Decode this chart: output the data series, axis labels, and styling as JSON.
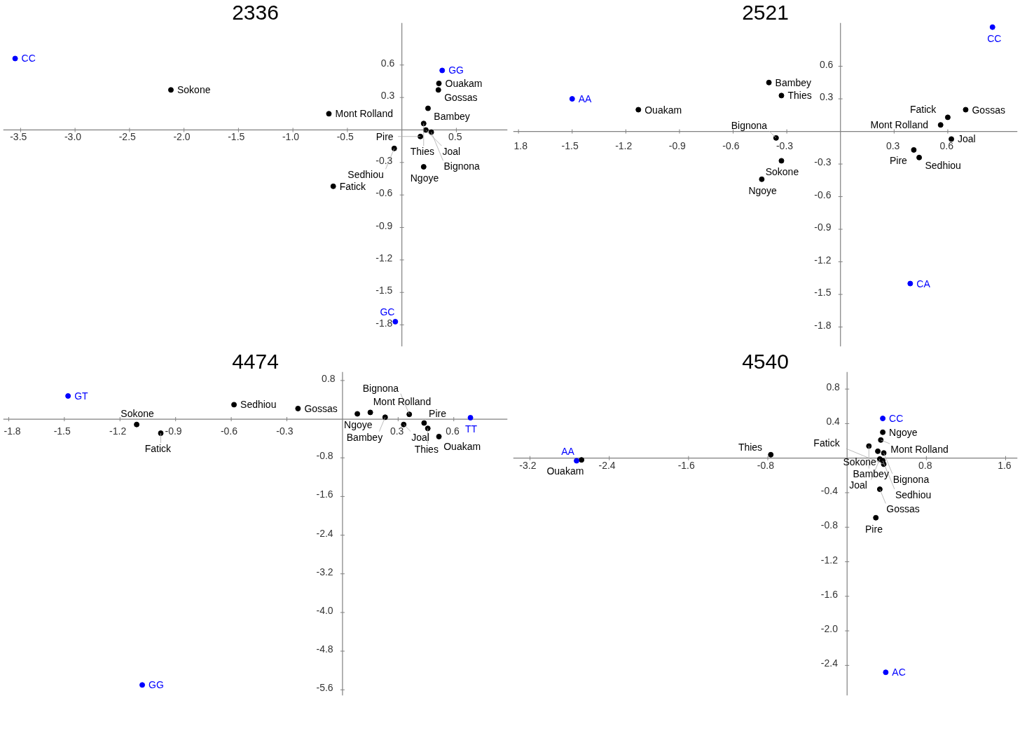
{
  "chart_data": [
    {
      "type": "scatter",
      "title": "2336",
      "marker": "circle",
      "xlim": [
        -3.66,
        0.97
      ],
      "ylim": [
        -2.0,
        0.99
      ],
      "xticks": [
        -3.5,
        {
          "value": -3,
          "label": "-3.0"
        },
        -2.5,
        {
          "value": -2,
          "label": "-2.0"
        },
        -1.5,
        {
          "value": -1,
          "label": "-1.0"
        },
        -0.5,
        0.5
      ],
      "yticks": [
        0.6,
        0.3,
        -0.3,
        -0.6,
        -0.9,
        -1.2,
        -1.5,
        -1.8
      ],
      "series": [
        {
          "color": "#000000",
          "x": [
            -2.12,
            -0.67,
            -0.63,
            0.34,
            0.335,
            0.24,
            0.2,
            0.22,
            0.27,
            0.17,
            -0.07,
            0.2
          ],
          "values": [
            0.37,
            0.15,
            -0.52,
            0.43,
            0.37,
            0.2,
            0.06,
            0.0,
            -0.02,
            -0.06,
            -0.17,
            -0.34
          ],
          "value_labels": [
            "Sokone",
            "Mont Rolland",
            "Fatick",
            "Ouakam",
            "Gossas",
            "Bambey",
            "Thies",
            "Joal",
            "Bignona",
            "Pire",
            "Sedhiou",
            "Ngoye"
          ]
        },
        {
          "color": "#0000ff",
          "x": [
            -3.55,
            0.37,
            -0.06
          ],
          "values": [
            0.66,
            0.55,
            -1.77
          ],
          "value_labels": [
            "CC",
            "GG",
            "GC"
          ]
        }
      ]
    },
    {
      "type": "scatter",
      "title": "2521",
      "marker": "circle",
      "xlim": [
        -1.83,
        0.99
      ],
      "ylim": [
        -1.98,
        1.0
      ],
      "xticks": [
        {
          "value": -1.8,
          "label": "1.8"
        },
        -1.5,
        -1.2,
        -0.9,
        -0.6,
        -0.3,
        0.3,
        0.6
      ],
      "yticks": [
        0.6,
        0.3,
        -0.3,
        -0.6,
        -0.9,
        -1.2,
        -1.5,
        -1.8
      ],
      "series": [
        {
          "color": "#000000",
          "x": [
            -1.13,
            -0.4,
            -0.33,
            -0.36,
            -0.33,
            -0.44,
            0.7,
            0.6,
            0.56,
            0.62,
            0.41,
            0.44
          ],
          "values": [
            0.2,
            0.45,
            0.33,
            -0.06,
            -0.27,
            -0.44,
            0.2,
            0.13,
            0.06,
            -0.07,
            -0.17,
            -0.24
          ],
          "value_labels": [
            "Ouakam",
            "Bambey",
            "Thies",
            "Bignona",
            "Sokone",
            "Ngoye",
            "Gossas",
            "Fatick",
            "Mont Rolland",
            "Joal",
            "Pire",
            "Sedhiou"
          ]
        },
        {
          "color": "#0000ff",
          "x": [
            0.85,
            -1.5,
            0.39
          ],
          "values": [
            0.96,
            0.3,
            -1.4
          ],
          "value_labels": [
            "CC",
            "AA",
            "CA"
          ]
        }
      ]
    },
    {
      "type": "scatter",
      "title": "4474",
      "marker": "circle",
      "xlim": [
        -1.83,
        0.89
      ],
      "ylim": [
        -5.72,
        0.98
      ],
      "xticks": [
        -1.8,
        -1.5,
        -1.2,
        -0.9,
        -0.6,
        -0.3,
        0.3,
        0.6
      ],
      "yticks": [
        0.8,
        -0.8,
        -1.6,
        -2.4,
        -3.2,
        {
          "value": -4,
          "label": "-4.0"
        },
        -4.8,
        -5.6
      ],
      "series": [
        {
          "color": "#000000",
          "x": [
            -1.11,
            -0.98,
            -0.585,
            -0.24,
            0.08,
            0.15,
            0.23,
            0.33,
            0.36,
            0.44,
            0.46,
            0.52
          ],
          "values": [
            -0.11,
            -0.29,
            0.3,
            0.22,
            0.11,
            0.14,
            0.04,
            -0.11,
            0.1,
            -0.08,
            -0.19,
            -0.36
          ],
          "value_labels": [
            "Sokone",
            "Fatick",
            "Sedhiou",
            "Gossas",
            "Ngoye",
            "Mont Rolland",
            "Bambey",
            "Joal",
            "Bignona",
            "Pire",
            "Thies",
            "Ouakam"
          ]
        },
        {
          "color": "#0000ff",
          "x": [
            -1.48,
            -1.08,
            0.69
          ],
          "values": [
            0.48,
            -5.5,
            0.03
          ],
          "value_labels": [
            "GT",
            "GG",
            "TT"
          ]
        }
      ]
    },
    {
      "type": "scatter",
      "title": "4540",
      "marker": "circle",
      "xlim": [
        -3.37,
        1.72
      ],
      "ylim": [
        -2.75,
        1.0
      ],
      "xticks": [
        -3.2,
        -2.4,
        -1.6,
        -0.8,
        0.8,
        1.6
      ],
      "yticks": [
        0.8,
        0.4,
        -0.4,
        -0.8,
        -1.2,
        -1.6,
        {
          "value": -2,
          "label": "-2.0"
        },
        -2.4
      ],
      "series": [
        {
          "color": "#000000",
          "x": [
            -2.68,
            -0.77,
            0.36,
            0.34,
            0.22,
            0.31,
            0.37,
            0.33,
            0.36,
            0.37,
            0.33,
            0.29
          ],
          "values": [
            -0.02,
            0.04,
            0.3,
            0.21,
            0.14,
            0.08,
            0.06,
            -0.01,
            -0.03,
            -0.07,
            -0.36,
            -0.69
          ],
          "value_labels": [
            "Ouakam",
            "Thies",
            "Ngoye",
            "Mont Rolland",
            "Bambey",
            "Sokone",
            "Bignona",
            "Joal",
            "Sedhiou",
            "Fatick",
            "Gossas",
            "Pire"
          ]
        },
        {
          "color": "#0000ff",
          "x": [
            0.36,
            -2.73,
            0.39
          ],
          "values": [
            0.46,
            -0.03,
            -2.48
          ],
          "value_labels": [
            "CC",
            "AA",
            "AC"
          ]
        }
      ]
    }
  ]
}
